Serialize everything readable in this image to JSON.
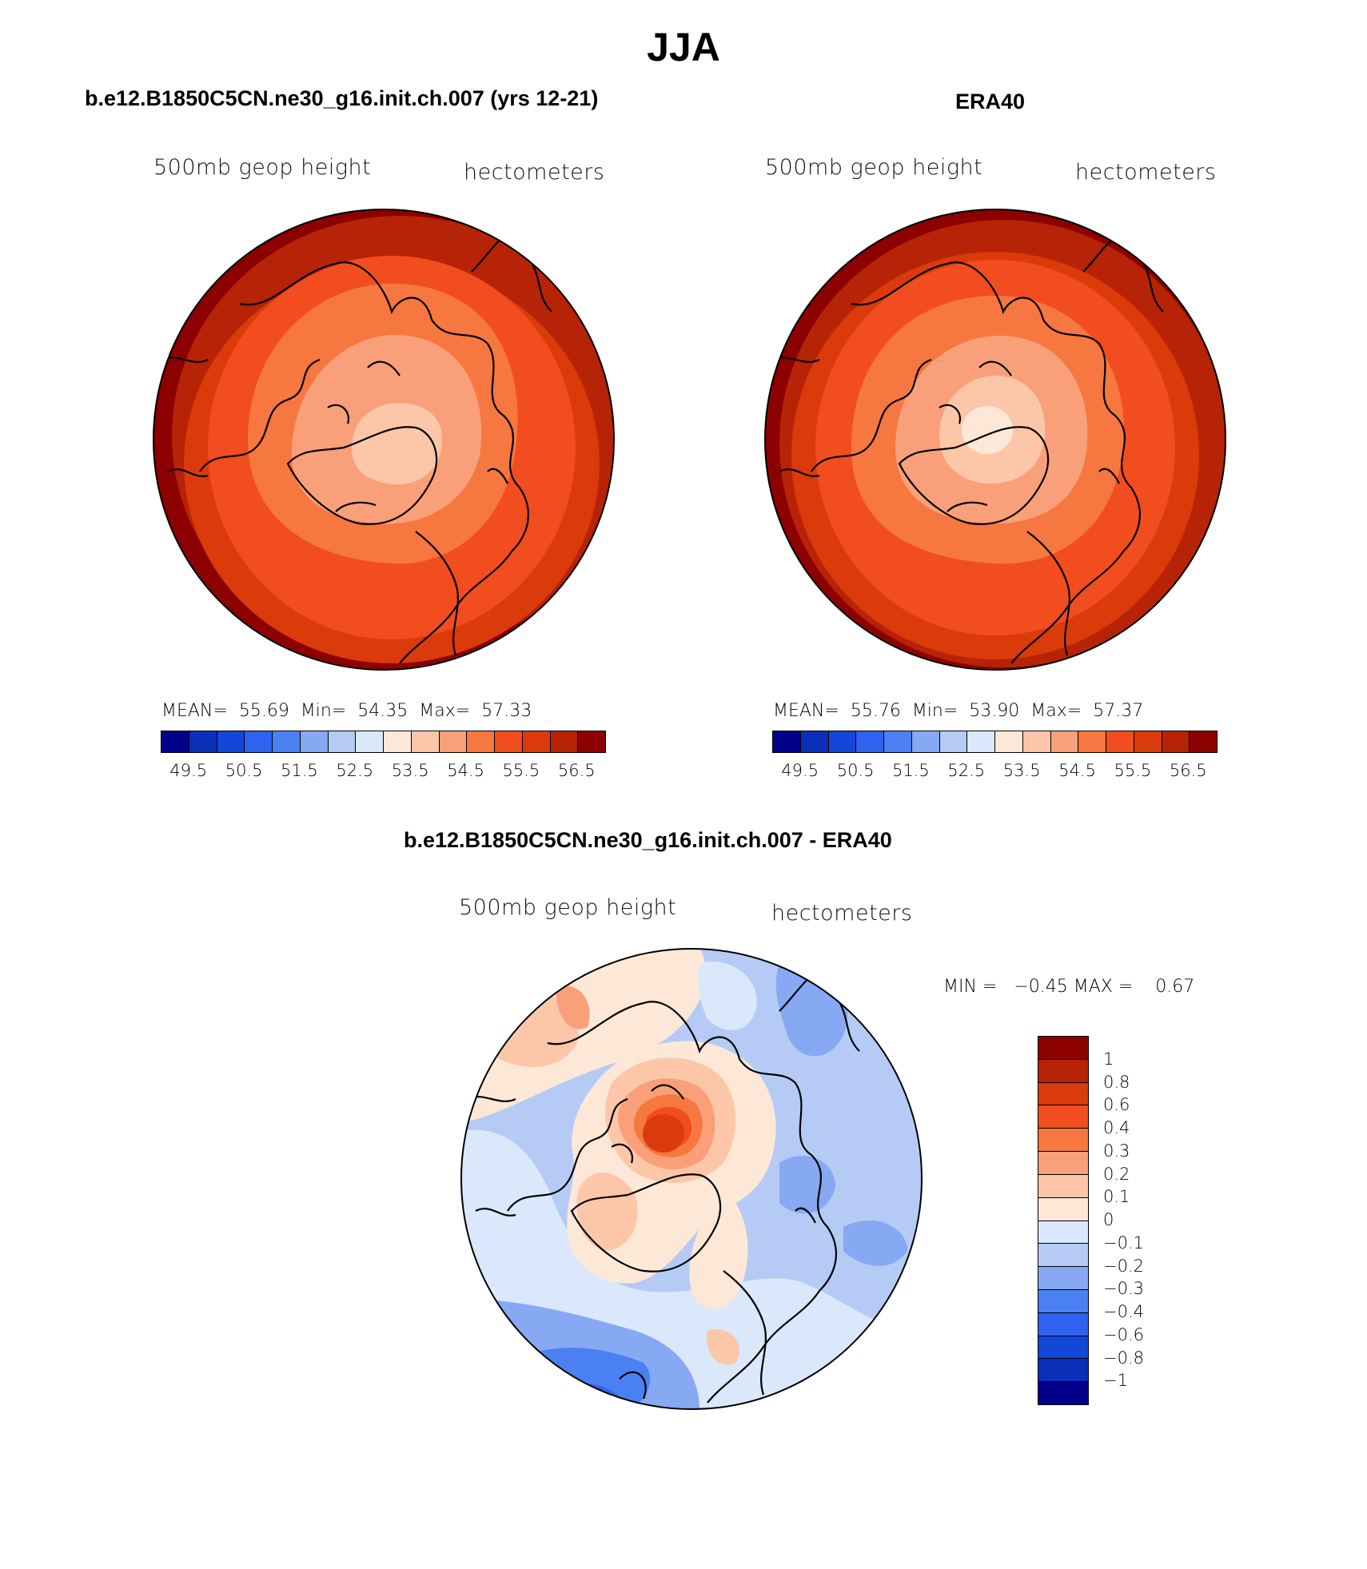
{
  "season_title": "JJA",
  "panels": [
    {
      "title": "b.e12.B1850C5CN.ne30_g16.init.ch.007 (yrs 12-21)",
      "left_string": "500mb geop height",
      "right_string": "hectometers",
      "stats": {
        "mean_label": "MEAN=",
        "mean": "55.69",
        "min_label": "Min=",
        "min": "54.35",
        "max_label": "Max=",
        "max": "57.33"
      },
      "colorbar_ticks": [
        "49.5",
        "50.5",
        "51.5",
        "52.5",
        "53.5",
        "54.5",
        "55.5",
        "56.5"
      ]
    },
    {
      "title": "ERA40",
      "left_string": "500mb geop height",
      "right_string": "hectometers",
      "stats": {
        "mean_label": "MEAN=",
        "mean": "55.76",
        "min_label": "Min=",
        "min": "53.90",
        "max_label": "Max=",
        "max": "57.37"
      },
      "colorbar_ticks": [
        "49.5",
        "50.5",
        "51.5",
        "52.5",
        "53.5",
        "54.5",
        "55.5",
        "56.5"
      ]
    },
    {
      "title": "b.e12.B1850C5CN.ne30_g16.init.ch.007 - ERA40",
      "left_string": "500mb geop height",
      "right_string": "hectometers",
      "minmax_text": "MIN =   −0.45 MAX =    0.67",
      "colorbar_ticks": [
        "1",
        "0.8",
        "0.6",
        "0.4",
        "0.3",
        "0.2",
        "0.1",
        "0",
        "−0.1",
        "−0.2",
        "−0.3",
        "−0.4",
        "−0.6",
        "−0.8",
        "−1"
      ]
    }
  ],
  "colors": {
    "abs_scale": [
      "#00008b",
      "#0a2fb8",
      "#1446d9",
      "#2e63f0",
      "#4a80f2",
      "#87a8f2",
      "#b5cbf6",
      "#dbe8fb",
      "#fde8d8",
      "#fcc7a9",
      "#f9a07a",
      "#f6773f",
      "#f24d1f",
      "#db3a0a",
      "#b72306",
      "#8c0000"
    ],
    "diff_scale": [
      "#8c0000",
      "#b72306",
      "#db3a0a",
      "#f24d1f",
      "#f6773f",
      "#f9a07a",
      "#fcc7a9",
      "#fde8d8",
      "#dbe8fb",
      "#b5cbf6",
      "#87a8f2",
      "#4a80f2",
      "#2e63f0",
      "#1446d9",
      "#0a2fb8",
      "#00008b"
    ]
  }
}
